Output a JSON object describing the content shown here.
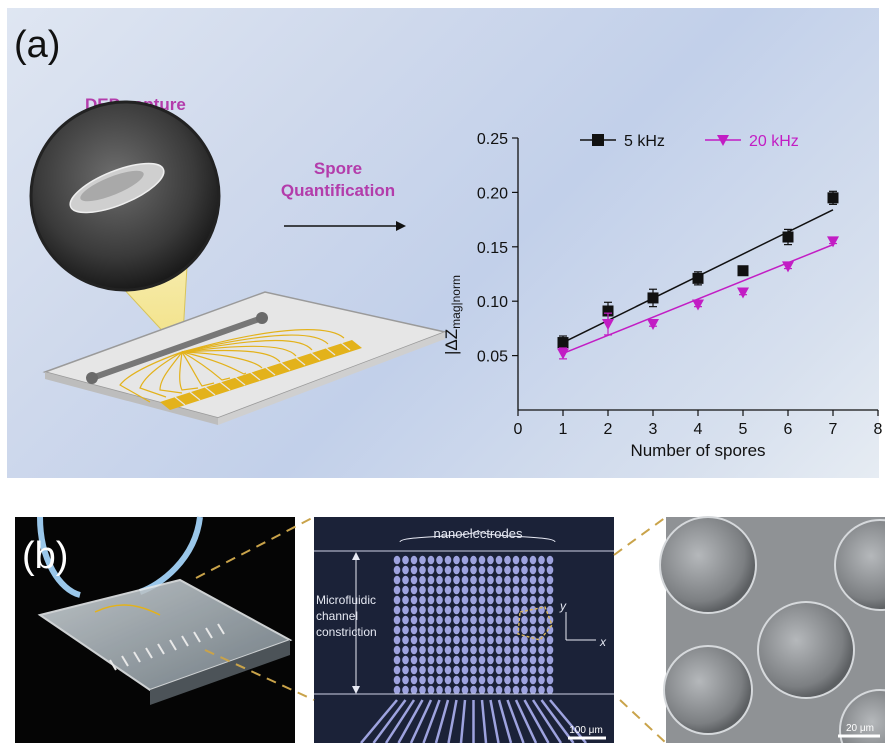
{
  "panel_a": {
    "letter": "(a)",
    "dep_label": "DEP capture",
    "quant_label_line1": "Spore",
    "quant_label_line2": "Quantification"
  },
  "panel_b": {
    "letter": "(b)",
    "nanoelectrodes_label": "nanoelectrodes",
    "channel_label_line1": "Microfluidic",
    "channel_label_line2": "channel",
    "channel_label_line3": "constriction",
    "axis_y": "y",
    "axis_x": "x",
    "scale_micro": "100 μm",
    "scale_sem": "20 μm"
  },
  "colors": {
    "series_5khz": "#111111",
    "series_20khz": "#c21dc4",
    "accent_label": "#b33cab",
    "electrode_gold": "#e3b21b"
  },
  "chart_data": {
    "type": "scatter",
    "xlabel": "Number of spores",
    "ylabel": "|ΔZmag|norm",
    "ylabel_main": "|ΔZ",
    "ylabel_sub": "mag",
    "ylabel_end": "|norm",
    "xlim": [
      0,
      8
    ],
    "ylim": [
      0.0,
      0.25
    ],
    "x_ticks": [
      0,
      1,
      2,
      3,
      4,
      5,
      6,
      7,
      8
    ],
    "y_ticks": [
      0.05,
      0.1,
      0.15,
      0.2,
      0.25
    ],
    "y_tick_labels": [
      "0.05",
      "0.10",
      "0.15",
      "0.20",
      "0.25"
    ],
    "legend_position": "top",
    "series": [
      {
        "name": "5 kHz",
        "marker": "square",
        "x": [
          1,
          2,
          3,
          4,
          5,
          6,
          7
        ],
        "y": [
          0.062,
          0.091,
          0.103,
          0.121,
          0.128,
          0.159,
          0.195
        ],
        "err": [
          0.006,
          0.008,
          0.008,
          0.006,
          0.003,
          0.007,
          0.006
        ],
        "fit": [
          [
            1,
            0.062
          ],
          [
            7,
            0.184
          ]
        ]
      },
      {
        "name": "20 kHz",
        "marker": "triangle-down",
        "x": [
          1,
          2,
          3,
          4,
          5,
          6,
          7
        ],
        "y": [
          0.052,
          0.079,
          0.079,
          0.097,
          0.108,
          0.132,
          0.155
        ],
        "err": [
          0.005,
          0.01,
          0.002,
          0.002,
          0.002,
          0.002,
          0.002
        ],
        "fit": [
          [
            1,
            0.052
          ],
          [
            7,
            0.152
          ]
        ]
      }
    ]
  }
}
